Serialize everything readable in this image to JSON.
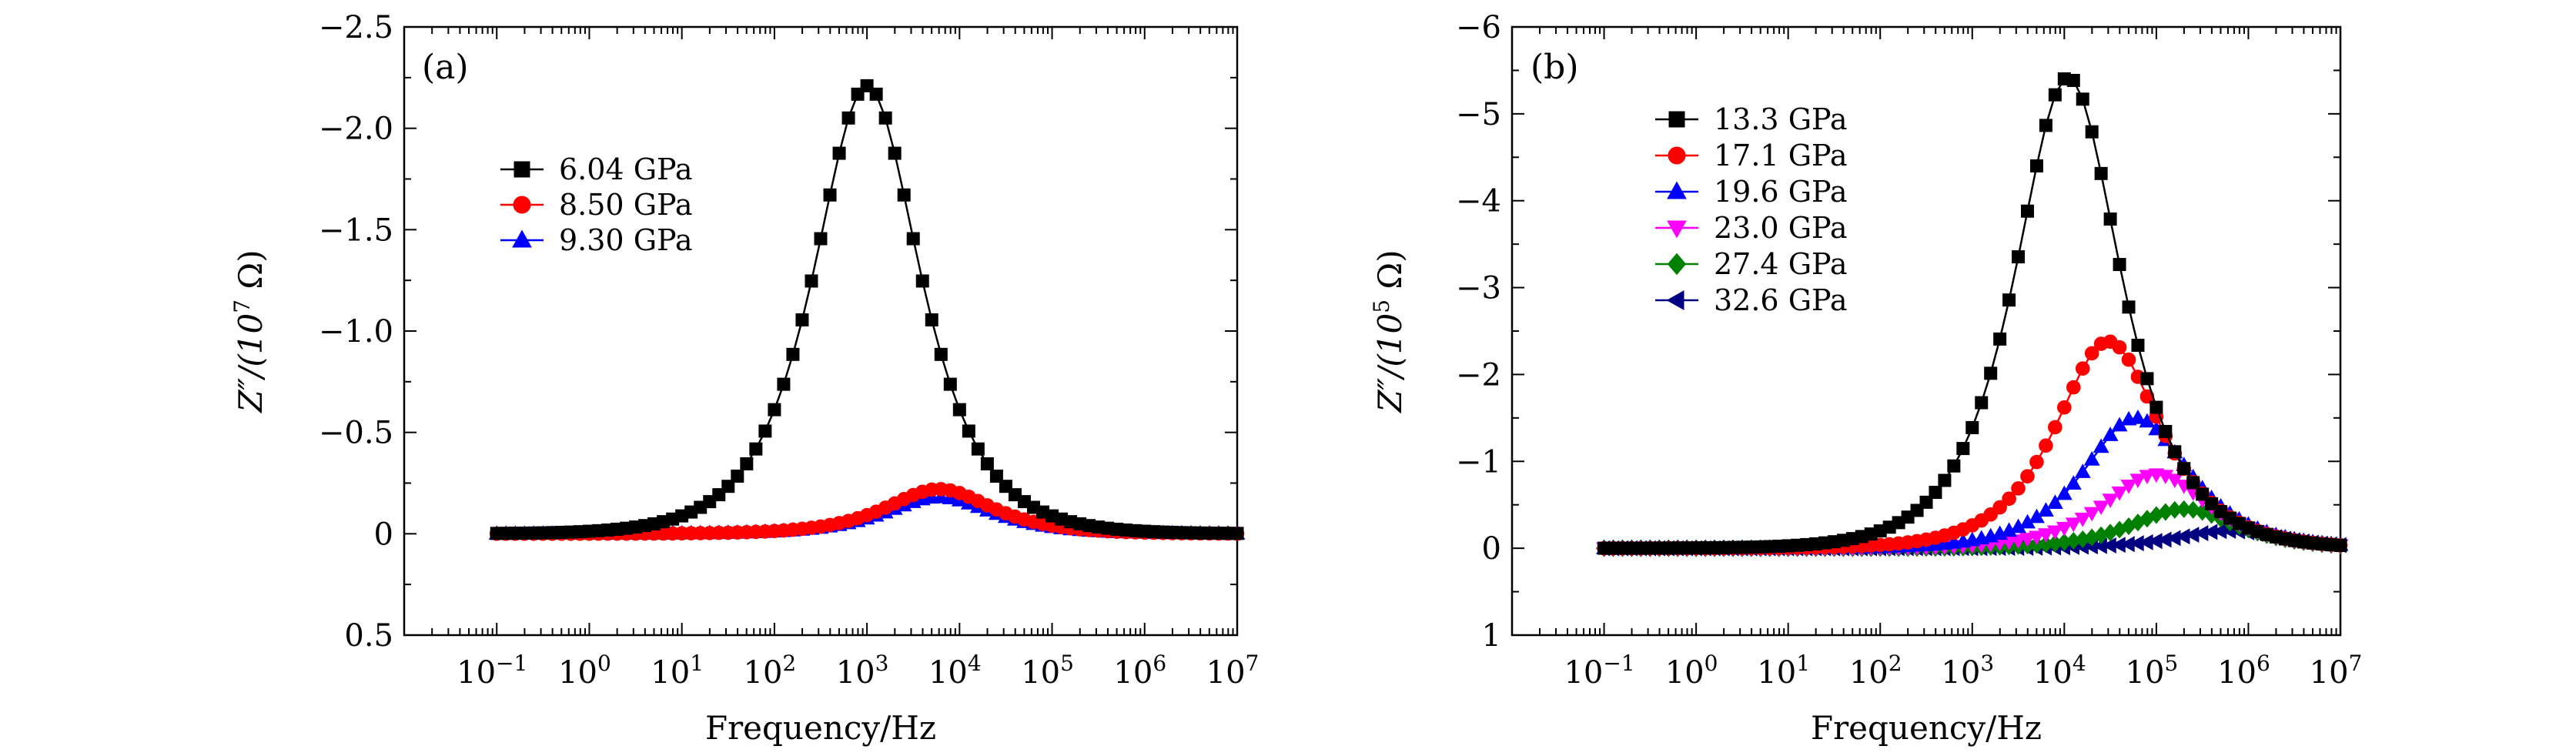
{
  "chart_data": [
    {
      "panel": "(a)",
      "type": "line",
      "xlabel": "Frequency/Hz",
      "ylabel": "Z″/(10^7 Ω)",
      "ylabel_parts": {
        "main": "Z″/(10",
        "sup": "7",
        "tail": " Ω)"
      },
      "x_scale": "log",
      "xlim": [
        0.01,
        10000000
      ],
      "x_ticks": [
        {
          "value": 0.1,
          "label": "10",
          "sup": "−1"
        },
        {
          "value": 1,
          "label": "10",
          "sup": "0"
        },
        {
          "value": 10,
          "label": "10",
          "sup": "1"
        },
        {
          "value": 100,
          "label": "10",
          "sup": "2"
        },
        {
          "value": 1000,
          "label": "10",
          "sup": "3"
        },
        {
          "value": 10000,
          "label": "10",
          "sup": "4"
        },
        {
          "value": 100000,
          "label": "10",
          "sup": "5"
        },
        {
          "value": 1000000,
          "label": "10",
          "sup": "6"
        },
        {
          "value": 10000000,
          "label": "10",
          "sup": "7"
        }
      ],
      "ylim": [
        0.5,
        -2.5
      ],
      "y_ticks": [
        {
          "value": -2.5,
          "label": "−2.5"
        },
        {
          "value": -2.0,
          "label": "−2.0"
        },
        {
          "value": -1.5,
          "label": "−1.5"
        },
        {
          "value": -1.0,
          "label": "−1.0"
        },
        {
          "value": -0.5,
          "label": "−0.5"
        },
        {
          "value": 0,
          "label": "0"
        },
        {
          "value": 0.5,
          "label": "0.5"
        }
      ],
      "legend_position": "upper-left",
      "series": [
        {
          "name": "6.04 GPa",
          "color": "#000000",
          "marker": "square",
          "peak_frequency": 1000,
          "peak_value": -2.21,
          "x_range": [
            0.1,
            10000000
          ]
        },
        {
          "name": "8.50 GPa",
          "color": "#ff0000",
          "marker": "circle",
          "peak_frequency": 6000,
          "peak_value": -0.22,
          "x_range": [
            0.1,
            10000000
          ]
        },
        {
          "name": "9.30 GPa",
          "color": "#0000ff",
          "marker": "triangle-up",
          "peak_frequency": 6000,
          "peak_value": -0.18,
          "x_range": [
            0.1,
            10000000
          ]
        }
      ]
    },
    {
      "panel": "(b)",
      "type": "line",
      "xlabel": "Frequency/Hz",
      "ylabel": "Z″/(10^5 Ω)",
      "ylabel_parts": {
        "main": "Z″/(10",
        "sup": "5",
        "tail": " Ω)"
      },
      "x_scale": "log",
      "xlim": [
        0.01,
        10000000
      ],
      "x_ticks": [
        {
          "value": 0.1,
          "label": "10",
          "sup": "−1"
        },
        {
          "value": 1,
          "label": "10",
          "sup": "0"
        },
        {
          "value": 10,
          "label": "10",
          "sup": "1"
        },
        {
          "value": 100,
          "label": "10",
          "sup": "2"
        },
        {
          "value": 1000,
          "label": "10",
          "sup": "3"
        },
        {
          "value": 10000,
          "label": "10",
          "sup": "4"
        },
        {
          "value": 100000,
          "label": "10",
          "sup": "5"
        },
        {
          "value": 1000000,
          "label": "10",
          "sup": "6"
        },
        {
          "value": 10000000,
          "label": "10",
          "sup": "7"
        }
      ],
      "ylim": [
        1,
        -6
      ],
      "y_ticks": [
        {
          "value": -6,
          "label": "−6"
        },
        {
          "value": -5,
          "label": "−5"
        },
        {
          "value": -4,
          "label": "−4"
        },
        {
          "value": -3,
          "label": "−3"
        },
        {
          "value": -2,
          "label": "−2"
        },
        {
          "value": -1,
          "label": "−1"
        },
        {
          "value": 0,
          "label": "0"
        },
        {
          "value": 1,
          "label": "1"
        }
      ],
      "legend_position": "upper-left",
      "series": [
        {
          "name": "13.3 GPa",
          "color": "#000000",
          "marker": "square",
          "peak_frequency": 11000,
          "peak_value": -5.42,
          "x_range": [
            0.1,
            10000000
          ]
        },
        {
          "name": "17.1 GPa",
          "color": "#ff0000",
          "marker": "circle",
          "peak_frequency": 30000,
          "peak_value": -2.38,
          "x_range": [
            0.1,
            10000000
          ]
        },
        {
          "name": "19.6 GPa",
          "color": "#0000ff",
          "marker": "triangle-up",
          "peak_frequency": 60000,
          "peak_value": -1.5,
          "x_range": [
            0.1,
            10000000
          ]
        },
        {
          "name": "23.0 GPa",
          "color": "#ff00ff",
          "marker": "triangle-down",
          "peak_frequency": 100000,
          "peak_value": -0.85,
          "x_range": [
            0.1,
            10000000
          ]
        },
        {
          "name": "27.4 GPa",
          "color": "#008000",
          "marker": "diamond",
          "peak_frequency": 200000,
          "peak_value": -0.45,
          "x_range": [
            0.1,
            10000000
          ]
        },
        {
          "name": "32.6 GPa",
          "color": "#000080",
          "marker": "triangle-left",
          "peak_frequency": 600000,
          "peak_value": -0.2,
          "x_range": [
            0.1,
            10000000
          ]
        }
      ]
    }
  ]
}
